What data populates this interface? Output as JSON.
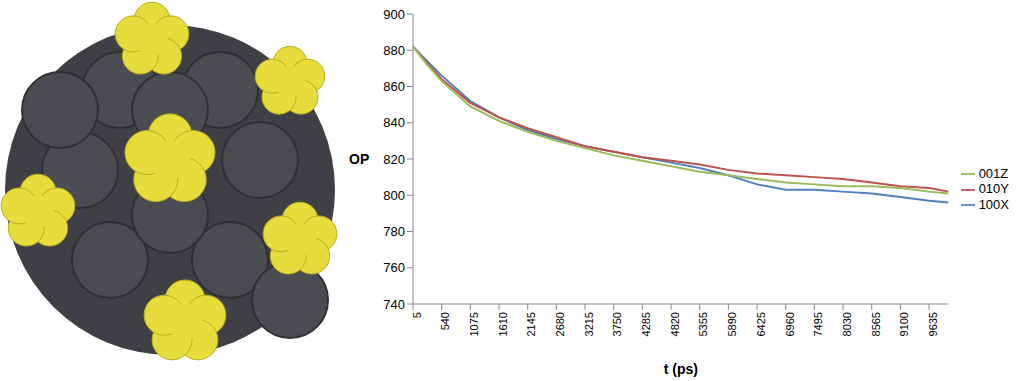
{
  "chart_data": {
    "type": "line",
    "xlabel": "t (ps)",
    "ylabel": "OP",
    "x": [
      5,
      270,
      540,
      1075,
      1610,
      2145,
      2680,
      3215,
      3750,
      4285,
      4820,
      5355,
      5890,
      6425,
      6960,
      7495,
      8030,
      8565,
      9100,
      9635,
      10000
    ],
    "series": [
      {
        "name": "100X",
        "color": "#4f81bd",
        "values": [
          882,
          874,
          866,
          852,
          843,
          836,
          831,
          827,
          824,
          821,
          818,
          815,
          811,
          806,
          803,
          803,
          802,
          801,
          799,
          797,
          796
        ]
      },
      {
        "name": "010Y",
        "color": "#c0504d",
        "values": [
          882,
          873,
          864,
          851,
          843,
          837,
          832,
          827,
          824,
          821,
          819,
          817,
          814,
          812,
          811,
          810,
          809,
          807,
          805,
          804,
          802
        ]
      },
      {
        "name": "001Z",
        "color": "#9bbb59",
        "values": [
          882,
          872,
          863,
          849,
          841,
          835,
          830,
          826,
          822,
          819,
          816,
          813,
          811,
          809,
          807,
          806,
          805,
          805,
          804,
          802,
          801
        ]
      }
    ],
    "xlim": [
      5,
      10000
    ],
    "xticks": [
      5,
      540,
      1075,
      1610,
      2145,
      2680,
      3215,
      3750,
      4285,
      4820,
      5355,
      5890,
      6425,
      6960,
      7495,
      8030,
      8565,
      9100,
      9635
    ],
    "ylim": [
      740,
      900
    ],
    "yticks": [
      740,
      760,
      780,
      800,
      820,
      840,
      860,
      880,
      900
    ],
    "grid": false,
    "legend": "right",
    "marker": "none",
    "line_style": "solid"
  }
}
